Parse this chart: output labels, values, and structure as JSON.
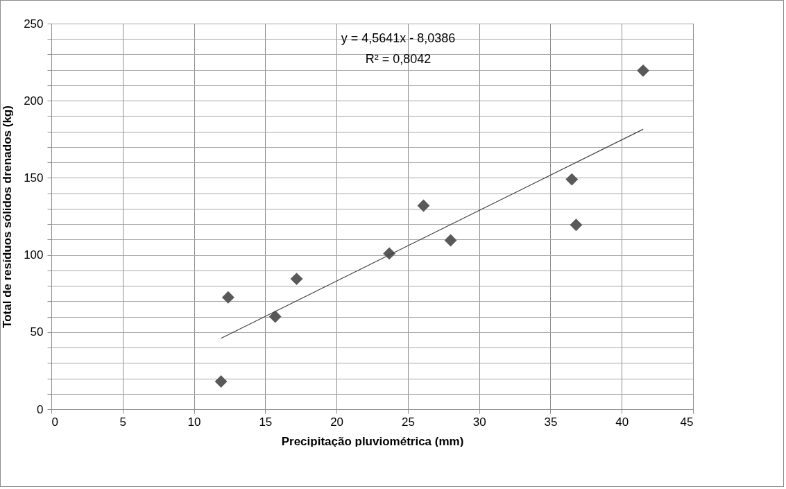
{
  "chart_data": {
    "type": "scatter",
    "xlabel": "Precipitação pluviométrica (mm)",
    "ylabel": "Total de resíduos sólidos drenados (kg)",
    "annotations": [
      "y = 4,5641x - 8,0386",
      "R² = 0,8042"
    ],
    "x": [
      11.9,
      12.4,
      15.7,
      17.2,
      23.7,
      26.1,
      28.0,
      36.5,
      36.8,
      41.5
    ],
    "series": [
      {
        "type": "scatter",
        "color": "#595959",
        "values": [
          18,
          72.5,
          60,
          84.5,
          101,
          132,
          109.5,
          149,
          119.5,
          219.5
        ]
      },
      {
        "type": "line",
        "marker": "none",
        "color": "#404040",
        "x": [
          11.9,
          41.5
        ],
        "values": [
          46,
          181.5
        ]
      }
    ],
    "xlim": [
      0,
      45
    ],
    "xticks": [
      0,
      5,
      10,
      15,
      20,
      25,
      30,
      35,
      40,
      45
    ],
    "ylim": [
      0,
      250
    ],
    "yticks": [
      0,
      {
        "value": 10,
        "label": null
      },
      {
        "value": 20,
        "label": null
      },
      {
        "value": 30,
        "label": null
      },
      {
        "value": 40,
        "label": null
      },
      50,
      {
        "value": 60,
        "label": null
      },
      {
        "value": 70,
        "label": null
      },
      {
        "value": 80,
        "label": null
      },
      {
        "value": 90,
        "label": null
      },
      100,
      {
        "value": 110,
        "label": null
      },
      {
        "value": 120,
        "label": null
      },
      {
        "value": 130,
        "label": null
      },
      {
        "value": 140,
        "label": null
      },
      150,
      {
        "value": 160,
        "label": null
      },
      {
        "value": 170,
        "label": null
      },
      {
        "value": 180,
        "label": null
      },
      {
        "value": 190,
        "label": null
      },
      200,
      {
        "value": 210,
        "label": null
      },
      {
        "value": 220,
        "label": null
      },
      {
        "value": 230,
        "label": null
      },
      {
        "value": 240,
        "label": null
      },
      250
    ],
    "grid": true,
    "marker": "diamond",
    "line_style": "solid"
  }
}
